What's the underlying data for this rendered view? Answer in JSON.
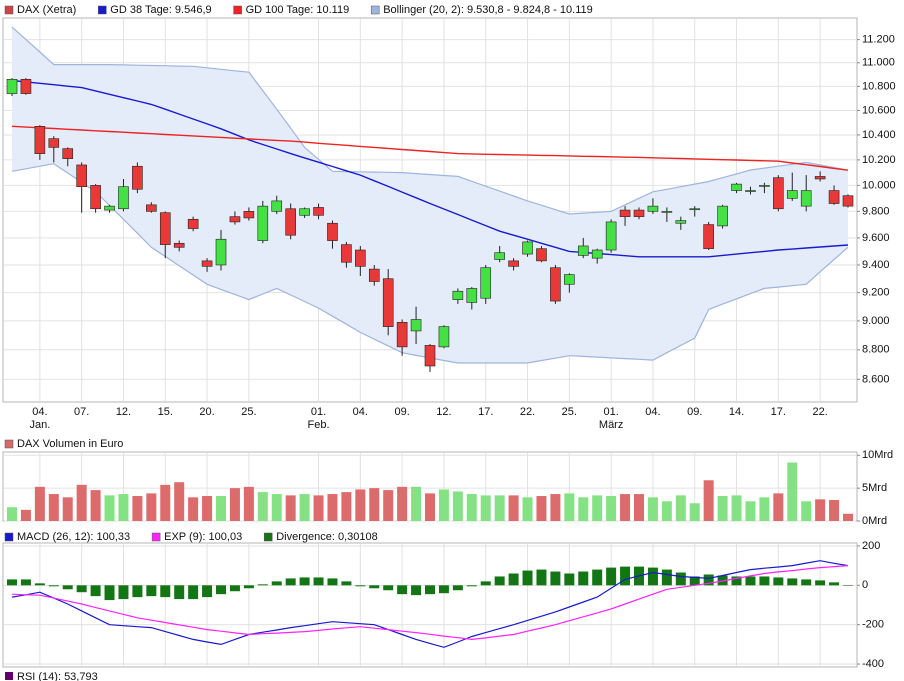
{
  "chart_data": [
    {
      "type": "candlestick",
      "log": true,
      "grid": true,
      "categories": [
        null,
        null,
        "04.",
        null,
        null,
        "07.",
        null,
        null,
        "12.",
        null,
        null,
        "15.",
        null,
        null,
        "20.",
        null,
        null,
        "25.",
        null,
        null,
        null,
        null,
        "01.",
        null,
        null,
        "04.",
        null,
        null,
        "09.",
        null,
        null,
        "12.",
        null,
        null,
        "17.",
        null,
        null,
        "22.",
        null,
        null,
        "25.",
        null,
        null,
        "01.",
        null,
        null,
        "04.",
        null,
        null,
        "09.",
        null,
        null,
        "14.",
        null,
        null,
        "17.",
        null,
        null,
        "22.",
        null,
        null
      ],
      "month_labels": [
        null,
        null,
        "Jan.",
        null,
        null,
        null,
        null,
        null,
        null,
        null,
        null,
        null,
        null,
        null,
        null,
        null,
        null,
        null,
        null,
        null,
        null,
        null,
        "Feb.",
        null,
        null,
        null,
        null,
        null,
        null,
        null,
        null,
        null,
        null,
        null,
        null,
        null,
        null,
        null,
        null,
        null,
        null,
        null,
        null,
        "März",
        null,
        null,
        null,
        null,
        null,
        null,
        null,
        null,
        null,
        null,
        null,
        null,
        null,
        null,
        null,
        null,
        null
      ],
      "ylim": [
        8450,
        11390
      ],
      "yticks": [
        {
          "value": 11200,
          "label": "11.200"
        },
        {
          "value": 11000,
          "label": "11.000"
        },
        {
          "value": 10800,
          "label": "10.800"
        },
        {
          "value": 10600,
          "label": "10.600"
        },
        {
          "value": 10400,
          "label": "10.400"
        },
        {
          "value": 10200,
          "label": "10.200"
        },
        {
          "value": 10000,
          "label": "10.000"
        },
        {
          "value": 9800,
          "label": "9.800"
        },
        {
          "value": 9600,
          "label": "9.600"
        },
        {
          "value": 9400,
          "label": "9.400"
        },
        {
          "value": 9200,
          "label": "9.200"
        },
        {
          "value": 9000,
          "label": "9.000"
        },
        {
          "value": 8800,
          "label": "8.800"
        },
        {
          "value": 8600,
          "label": "8.600"
        }
      ],
      "series": [
        {
          "name": "DAX (Xetra)",
          "color": "#cc4444",
          "up_color": "#44e044",
          "down_color": "#e83838",
          "open": [
            10740,
            10860,
            10470,
            10370,
            10290,
            10160,
            10000,
            9810,
            9820,
            10150,
            9850,
            9790,
            9560,
            9740,
            9430,
            9400,
            9760,
            9800,
            9580,
            9800,
            9820,
            9770,
            9830,
            9710,
            9550,
            9510,
            9370,
            9300,
            8990,
            8930,
            8830,
            8820,
            9150,
            9130,
            9160,
            9440,
            9430,
            9480,
            9520,
            9380,
            9260,
            9470,
            9450,
            9510,
            9810,
            9810,
            9800,
            9800,
            9710,
            9820,
            9700,
            9690,
            9960,
            9960,
            10000,
            10060,
            9900,
            9840,
            10070,
            9960,
            9920
          ],
          "high": [
            10870,
            10870,
            10480,
            10390,
            10300,
            10180,
            10010,
            9850,
            10050,
            10180,
            9870,
            9800,
            9580,
            9760,
            9450,
            9660,
            9800,
            9830,
            9880,
            9920,
            9860,
            9830,
            9860,
            9730,
            9570,
            9540,
            9400,
            9370,
            9010,
            9100,
            8840,
            8970,
            9230,
            9240,
            9400,
            9540,
            9450,
            9580,
            9540,
            9400,
            9340,
            9600,
            9520,
            9740,
            9840,
            9830,
            9900,
            9830,
            9760,
            9840,
            9720,
            9850,
            10020,
            9990,
            10020,
            10080,
            10100,
            10080,
            10110,
            10000,
            9930
          ],
          "low": [
            10720,
            10730,
            10200,
            10180,
            10150,
            9790,
            9790,
            9790,
            9800,
            9940,
            9790,
            9450,
            9500,
            9650,
            9350,
            9360,
            9700,
            9730,
            9560,
            9780,
            9590,
            9750,
            9740,
            9520,
            9380,
            9320,
            9250,
            8900,
            8760,
            8840,
            8650,
            8810,
            9120,
            9080,
            9120,
            9420,
            9360,
            9460,
            9420,
            9120,
            9200,
            9450,
            9410,
            9490,
            9690,
            9740,
            9780,
            9720,
            9660,
            9760,
            9510,
            9670,
            9940,
            9930,
            9940,
            9800,
            9880,
            9800,
            10030,
            9850,
            9830
          ],
          "close": [
            10860,
            10740,
            10250,
            10300,
            10210,
            9990,
            9820,
            9840,
            9990,
            9970,
            9800,
            9550,
            9530,
            9670,
            9390,
            9590,
            9720,
            9750,
            9840,
            9880,
            9620,
            9820,
            9770,
            9580,
            9420,
            9390,
            9280,
            8960,
            8820,
            9010,
            8690,
            8960,
            9210,
            9230,
            9380,
            9490,
            9390,
            9570,
            9430,
            9140,
            9330,
            9540,
            9510,
            9720,
            9760,
            9760,
            9840,
            9800,
            9730,
            9820,
            9520,
            9840,
            10010,
            9960,
            10000,
            9820,
            9960,
            9960,
            10050,
            9860,
            9840
          ]
        },
        {
          "name": "GD 38 Tage: 9.546,9",
          "color": "#1a1acc",
          "values": [
            10850,
            10838,
            10826,
            10814,
            10802,
            10790,
            10762,
            10734,
            10706,
            10678,
            10650,
            10610,
            10570,
            10530,
            10490,
            10450,
            10405,
            10360,
            10323,
            10287,
            10250,
            10216,
            10182,
            10148,
            10114,
            10080,
            10036,
            9992,
            9948,
            9904,
            9860,
            9818,
            9776,
            9734,
            9692,
            9650,
            9620,
            9590,
            9560,
            9530,
            9500,
            9492,
            9484,
            9476,
            9468,
            9460,
            9460,
            9460,
            9460,
            9460,
            9460,
            9470,
            9480,
            9490,
            9500,
            9510,
            9517,
            9525,
            9532,
            9540,
            9547
          ]
        },
        {
          "name": "GD 100 Tage: 10.119",
          "color": "#ee2222",
          "values": [
            10470,
            10464,
            10458,
            10452,
            10446,
            10440,
            10434,
            10428,
            10422,
            10416,
            10410,
            10404,
            10398,
            10392,
            10386,
            10380,
            10374,
            10368,
            10362,
            10356,
            10350,
            10342,
            10333,
            10325,
            10317,
            10308,
            10300,
            10292,
            10283,
            10275,
            10267,
            10258,
            10250,
            10248,
            10245,
            10243,
            10241,
            10238,
            10236,
            10234,
            10232,
            10229,
            10227,
            10225,
            10222,
            10220,
            10217,
            10214,
            10211,
            10208,
            10205,
            10202,
            10199,
            10196,
            10193,
            10190,
            10176,
            10162,
            10148,
            10133,
            10119
          ]
        },
        {
          "name": "Bollinger (20, 2): 9.530,8 - 9.824,8 - 10.119",
          "color": "#9fb4dd",
          "fill": "#e4ecfa",
          "upper": [
            11310,
            11202,
            11093,
            10985,
            10985,
            10985,
            10985,
            10985,
            10982,
            10980,
            10977,
            10975,
            10972,
            10970,
            10957,
            10945,
            10932,
            10920,
            10765,
            10610,
            10455,
            10300,
            10205,
            10110,
            10108,
            10106,
            10104,
            10102,
            10100,
            10092,
            10085,
            10077,
            10070,
            10032,
            9994,
            9956,
            9918,
            9880,
            9847,
            9813,
            9780,
            9787,
            9793,
            9800,
            9850,
            9900,
            9950,
            9970,
            9990,
            10010,
            10030,
            10060,
            10090,
            10120,
            10135,
            10150,
            10165,
            10180,
            10160,
            10140,
            10119
          ],
          "lower": [
            10110,
            10130,
            10150,
            10170,
            10097,
            10023,
            9950,
            9845,
            9740,
            9635,
            9530,
            9462,
            9395,
            9327,
            9260,
            9223,
            9187,
            9150,
            9190,
            9230,
            9183,
            9137,
            9090,
            9033,
            8977,
            8920,
            8873,
            8827,
            8780,
            8762,
            8745,
            8727,
            8710,
            8710,
            8710,
            8710,
            8710,
            8710,
            8727,
            8743,
            8760,
            8755,
            8750,
            8745,
            8740,
            8735,
            8730,
            8780,
            8830,
            8880,
            9080,
            9118,
            9155,
            9193,
            9230,
            9240,
            9250,
            9260,
            9350,
            9440,
            9531
          ]
        }
      ]
    },
    {
      "type": "bar",
      "title": "DAX Volumen in Euro",
      "color": "#d46a6a",
      "up_color": "#84e284",
      "down_color": "#dc6b6b",
      "grid": true,
      "ylim": [
        0,
        10.5
      ],
      "yticks": [
        {
          "value": 10,
          "label": "10Mrd"
        },
        {
          "value": 5,
          "label": "5Mrd"
        },
        {
          "value": 0,
          "label": "0Mrd"
        }
      ],
      "values": [
        2.1,
        1.7,
        5.2,
        4.1,
        3.6,
        5.5,
        4.7,
        3.9,
        4.1,
        3.8,
        4.2,
        5.5,
        5.9,
        3.6,
        3.8,
        3.8,
        5.0,
        5.2,
        4.4,
        4.1,
        3.9,
        4.1,
        3.9,
        4.1,
        4.4,
        4.8,
        5.0,
        4.7,
        5.2,
        5.2,
        4.2,
        4.8,
        4.5,
        4.1,
        3.9,
        3.9,
        3.9,
        3.6,
        3.8,
        4.1,
        4.2,
        3.6,
        3.9,
        3.8,
        4.1,
        4.1,
        3.6,
        3.0,
        3.9,
        2.7,
        6.2,
        3.8,
        3.9,
        3.0,
        3.6,
        4.2,
        8.9,
        3.0,
        3.3,
        3.2,
        1.1
      ]
    },
    {
      "type": "macd",
      "grid": true,
      "ylim": [
        -415,
        215
      ],
      "yticks": [
        200,
        0,
        -200,
        -400
      ],
      "series": [
        {
          "name": "MACD (26, 12): 100,33",
          "color": "#1a1acc",
          "values": [
            -60,
            -48,
            -35,
            -65,
            -95,
            -130,
            -165,
            -200,
            -205,
            -210,
            -215,
            -235,
            -255,
            -275,
            -288,
            -300,
            -275,
            -250,
            -238,
            -227,
            -215,
            -205,
            -195,
            -185,
            -190,
            -195,
            -200,
            -225,
            -250,
            -275,
            -295,
            -315,
            -288,
            -260,
            -240,
            -220,
            -200,
            -178,
            -157,
            -135,
            -110,
            -85,
            -60,
            -15,
            30,
            48,
            65,
            55,
            45,
            40,
            35,
            50,
            65,
            80,
            87,
            93,
            100,
            113,
            125,
            112,
            100.33
          ]
        },
        {
          "name": "EXP (9): 100,03",
          "color": "#ff22ff",
          "values": [
            -45,
            -48,
            -50,
            -65,
            -80,
            -95,
            -113,
            -130,
            -148,
            -165,
            -177,
            -189,
            -201,
            -213,
            -225,
            -233,
            -242,
            -250,
            -246,
            -243,
            -239,
            -235,
            -229,
            -222,
            -216,
            -210,
            -218,
            -225,
            -233,
            -240,
            -249,
            -258,
            -266,
            -275,
            -267,
            -258,
            -250,
            -233,
            -217,
            -200,
            -180,
            -160,
            -140,
            -120,
            -95,
            -70,
            -45,
            -20,
            -10,
            0,
            10,
            22,
            35,
            48,
            60,
            68,
            75,
            83,
            90,
            95,
            100.03
          ]
        },
        {
          "name": "Divergence: 0,30108",
          "color": "#137513",
          "type": "bar",
          "values": [
            30,
            30,
            10,
            -5,
            -20,
            -35,
            -55,
            -75,
            -70,
            -60,
            -55,
            -60,
            -70,
            -70,
            -60,
            -45,
            -30,
            -15,
            5,
            20,
            35,
            40,
            40,
            35,
            20,
            -5,
            -15,
            -25,
            -45,
            -50,
            -45,
            -40,
            -25,
            -5,
            20,
            45,
            60,
            75,
            80,
            70,
            60,
            70,
            80,
            90,
            95,
            95,
            90,
            80,
            65,
            45,
            55,
            50,
            45,
            45,
            45,
            40,
            35,
            30,
            25,
            15,
            0.30108
          ]
        }
      ]
    }
  ],
  "rsi": {
    "title": "RSI (14): 53,793",
    "color": "#660066"
  }
}
